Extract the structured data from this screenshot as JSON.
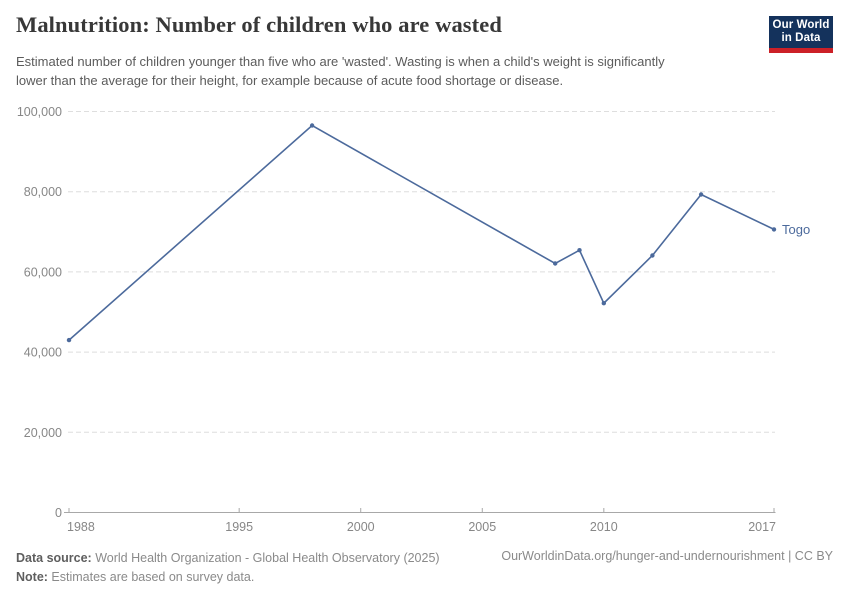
{
  "header": {
    "title": "Malnutrition: Number of children who are wasted",
    "subtitle": "Estimated number of children younger than five who are 'wasted'. Wasting is when a child's weight is significantly lower than the average for their height, for example because of acute food shortage or disease.",
    "logo": {
      "line1": "Our World",
      "line2": "in Data"
    }
  },
  "chart_data": {
    "type": "line",
    "title": "Malnutrition: Number of children who are wasted",
    "xlabel": "",
    "ylabel": "",
    "xlim": [
      1988,
      2017
    ],
    "ylim": [
      0,
      100000
    ],
    "x_ticks": [
      1988,
      1995,
      2000,
      2005,
      2010,
      2017
    ],
    "y_ticks": [
      0,
      20000,
      40000,
      60000,
      80000,
      100000
    ],
    "grid": "horizontal-dashed",
    "legend_position": "end-of-line",
    "series": [
      {
        "name": "Togo",
        "x": [
          1988,
          1998,
          2008,
          2009,
          2010,
          2012,
          2014,
          2017
        ],
        "values": [
          43000,
          96500,
          62100,
          65400,
          52200,
          64100,
          79300,
          70600
        ]
      }
    ],
    "end_label": "Togo"
  },
  "colors": {
    "line": "#4C6A9C",
    "grid": "#dedede",
    "axis": "#a8a8a8",
    "tick_label": "#878787",
    "logo_navy": "#14325c",
    "logo_red": "#cc2027"
  },
  "footer": {
    "source_label": "Data source:",
    "source_text": " World Health Organization - Global Health Observatory (2025)",
    "note_label": "Note:",
    "note_text": " Estimates are based on survey data.",
    "link_text": "OurWorldinData.org/hunger-and-undernourishment | CC BY"
  }
}
